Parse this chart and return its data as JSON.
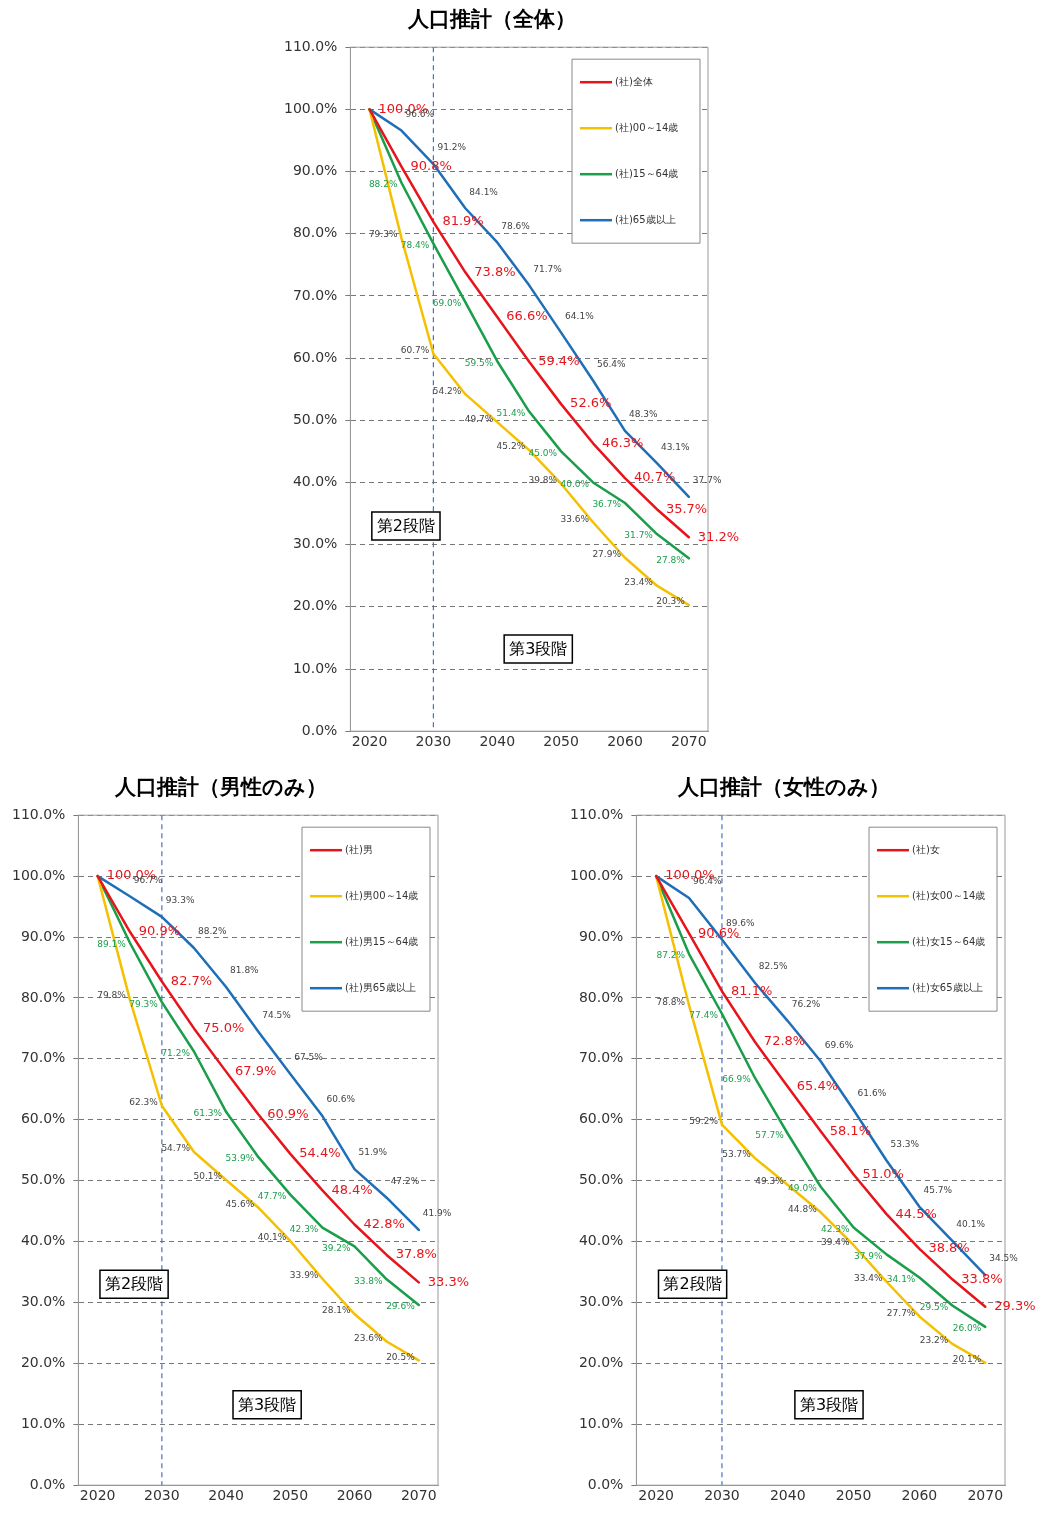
{
  "chart_data": [
    {
      "type": "line",
      "title": "人口推計（全体）",
      "x": [
        2020,
        2025,
        2030,
        2035,
        2040,
        2045,
        2050,
        2055,
        2060,
        2065,
        2070
      ],
      "xlim": [
        2017,
        2073
      ],
      "xticks": [
        2020,
        2030,
        2040,
        2050,
        2060,
        2070
      ],
      "ylim": [
        0,
        110
      ],
      "yticks": [
        {
          "value": 0,
          "label": "0.0%"
        },
        {
          "value": 10,
          "label": "10.0%"
        },
        {
          "value": 20,
          "label": "20.0%"
        },
        {
          "value": 30,
          "label": "30.0%"
        },
        {
          "value": 40,
          "label": "40.0%"
        },
        {
          "value": 50,
          "label": "50.0%"
        },
        {
          "value": 60,
          "label": "60.0%"
        },
        {
          "value": 70,
          "label": "70.0%"
        },
        {
          "value": 80,
          "label": "80.0%"
        },
        {
          "value": 90,
          "label": "90.0%"
        },
        {
          "value": 100,
          "label": "100.0%"
        },
        {
          "value": 110,
          "label": "110.0%"
        }
      ],
      "grid": "y",
      "legend": "top right",
      "marker": "none",
      "series": [
        {
          "name": "(社)全体",
          "color": "#e8141b",
          "values": [
            100.0,
            90.8,
            81.9,
            73.8,
            66.6,
            59.4,
            52.6,
            46.3,
            40.7,
            35.7,
            31.2
          ],
          "value_labels": [
            "100.0%",
            "90.8%",
            "81.9%",
            "73.8%",
            "66.6%",
            "59.4%",
            "52.6%",
            "46.3%",
            "40.7%",
            "35.7%",
            "31.2%"
          ]
        },
        {
          "name": "(社)00～14歳",
          "color": "#f5c000",
          "values": [
            100.0,
            79.3,
            60.7,
            54.2,
            49.7,
            45.2,
            39.8,
            33.6,
            27.9,
            23.4,
            20.3
          ],
          "value_labels": [
            null,
            "79.3%",
            "60.7%",
            "54.2%",
            "49.7%",
            "45.2%",
            "39.8%",
            "33.6%",
            "27.9%",
            "23.4%",
            "20.3%"
          ]
        },
        {
          "name": "(社)15～64歳",
          "color": "#1a9e4a",
          "values": [
            100.0,
            88.2,
            78.4,
            69.0,
            59.5,
            51.4,
            45.0,
            40.0,
            36.7,
            31.7,
            27.8
          ],
          "value_labels": [
            null,
            "88.2%",
            "78.4%",
            "69.0%",
            "59.5%",
            "51.4%",
            "45.0%",
            "40.0%",
            "36.7%",
            "31.7%",
            "27.8%"
          ]
        },
        {
          "name": "(社)65歳以上",
          "color": "#1f6fb8",
          "values": [
            100.0,
            96.6,
            91.2,
            84.1,
            78.6,
            71.7,
            64.1,
            56.4,
            48.3,
            43.1,
            37.7
          ],
          "value_labels": [
            null,
            "96.6%",
            "91.2%",
            "84.1%",
            "78.6%",
            "71.7%",
            "64.1%",
            "56.4%",
            "48.3%",
            "43.1%",
            "37.7%"
          ]
        }
      ],
      "ref_lines": [
        {
          "axis": "x",
          "value": 2030,
          "color": "#4472c4",
          "line_style": "dashed"
        }
      ],
      "annotations": [
        "第2段階",
        "第3段階"
      ]
    },
    {
      "type": "line",
      "title": "人口推計（男性のみ）",
      "x": [
        2020,
        2025,
        2030,
        2035,
        2040,
        2045,
        2050,
        2055,
        2060,
        2065,
        2070
      ],
      "xlim": [
        2017,
        2073
      ],
      "xticks": [
        2020,
        2030,
        2040,
        2050,
        2060,
        2070
      ],
      "ylim": [
        0,
        110
      ],
      "yticks": [
        {
          "value": 0,
          "label": "0.0%"
        },
        {
          "value": 10,
          "label": "10.0%"
        },
        {
          "value": 20,
          "label": "20.0%"
        },
        {
          "value": 30,
          "label": "30.0%"
        },
        {
          "value": 40,
          "label": "40.0%"
        },
        {
          "value": 50,
          "label": "50.0%"
        },
        {
          "value": 60,
          "label": "60.0%"
        },
        {
          "value": 70,
          "label": "70.0%"
        },
        {
          "value": 80,
          "label": "80.0%"
        },
        {
          "value": 90,
          "label": "90.0%"
        },
        {
          "value": 100,
          "label": "100.0%"
        },
        {
          "value": 110,
          "label": "110.0%"
        }
      ],
      "grid": "y",
      "legend": "top right",
      "marker": "none",
      "series": [
        {
          "name": "(社)男",
          "color": "#e8141b",
          "values": [
            100.0,
            90.9,
            82.7,
            75.0,
            67.9,
            60.9,
            54.4,
            48.4,
            42.8,
            37.8,
            33.3
          ],
          "value_labels": [
            "100.0%",
            "90.9%",
            "82.7%",
            "75.0%",
            "67.9%",
            "60.9%",
            "54.4%",
            "48.4%",
            "42.8%",
            "37.8%",
            "33.3%"
          ]
        },
        {
          "name": "(社)男00～14歳",
          "color": "#f5c000",
          "values": [
            100.0,
            79.8,
            62.3,
            54.7,
            50.1,
            45.6,
            40.1,
            33.9,
            28.1,
            23.6,
            20.5
          ],
          "value_labels": [
            null,
            "79.8%",
            "62.3%",
            "54.7%",
            "50.1%",
            "45.6%",
            "40.1%",
            "33.9%",
            "28.1%",
            "23.6%",
            "20.5%"
          ]
        },
        {
          "name": "(社)男15～64歳",
          "color": "#1a9e4a",
          "values": [
            100.0,
            89.1,
            79.3,
            71.2,
            61.3,
            53.9,
            47.7,
            42.3,
            39.2,
            33.8,
            29.6
          ],
          "value_labels": [
            null,
            "89.1%",
            "79.3%",
            "71.2%",
            "61.3%",
            "53.9%",
            "47.7%",
            "42.3%",
            "39.2%",
            "33.8%",
            "29.6%"
          ]
        },
        {
          "name": "(社)男65歳以上",
          "color": "#1f6fb8",
          "values": [
            100.0,
            96.7,
            93.3,
            88.2,
            81.8,
            74.5,
            67.5,
            60.6,
            51.9,
            47.2,
            41.9
          ],
          "value_labels": [
            null,
            "96.7%",
            "93.3%",
            "88.2%",
            "81.8%",
            "74.5%",
            "67.5%",
            "60.6%",
            "51.9%",
            "47.2%",
            "41.9%"
          ]
        }
      ],
      "ref_lines": [
        {
          "axis": "x",
          "value": 2030,
          "color": "#4472c4",
          "line_style": "dashed"
        }
      ],
      "annotations": [
        "第2段階",
        "第3段階"
      ]
    },
    {
      "type": "line",
      "title": "人口推計（女性のみ）",
      "x": [
        2020,
        2025,
        2030,
        2035,
        2040,
        2045,
        2050,
        2055,
        2060,
        2065,
        2070
      ],
      "xlim": [
        2017,
        2073
      ],
      "xticks": [
        2020,
        2030,
        2040,
        2050,
        2060,
        2070
      ],
      "ylim": [
        0,
        110
      ],
      "yticks": [
        {
          "value": 0,
          "label": "0.0%"
        },
        {
          "value": 10,
          "label": "10.0%"
        },
        {
          "value": 20,
          "label": "20.0%"
        },
        {
          "value": 30,
          "label": "30.0%"
        },
        {
          "value": 40,
          "label": "40.0%"
        },
        {
          "value": 50,
          "label": "50.0%"
        },
        {
          "value": 60,
          "label": "60.0%"
        },
        {
          "value": 70,
          "label": "70.0%"
        },
        {
          "value": 80,
          "label": "80.0%"
        },
        {
          "value": 90,
          "label": "90.0%"
        },
        {
          "value": 100,
          "label": "100.0%"
        },
        {
          "value": 110,
          "label": "110.0%"
        }
      ],
      "grid": "y",
      "legend": "top right",
      "marker": "none",
      "series": [
        {
          "name": "(社)女",
          "color": "#e8141b",
          "values": [
            100.0,
            90.6,
            81.1,
            72.8,
            65.4,
            58.1,
            51.0,
            44.5,
            38.8,
            33.8,
            29.3
          ],
          "value_labels": [
            "100.0%",
            "90.6%",
            "81.1%",
            "72.8%",
            "65.4%",
            "58.1%",
            "51.0%",
            "44.5%",
            "38.8%",
            "33.8%",
            "29.3%"
          ]
        },
        {
          "name": "(社)女00～14歳",
          "color": "#f5c000",
          "values": [
            100.0,
            78.8,
            59.2,
            53.7,
            49.3,
            44.8,
            39.4,
            33.4,
            27.7,
            23.2,
            20.1
          ],
          "value_labels": [
            null,
            "78.8%",
            "59.2%",
            "53.7%",
            "49.3%",
            "44.8%",
            "39.4%",
            "33.4%",
            "27.7%",
            "23.2%",
            "20.1%"
          ]
        },
        {
          "name": "(社)女15～64歳",
          "color": "#1a9e4a",
          "values": [
            100.0,
            87.2,
            77.4,
            66.9,
            57.7,
            49.0,
            42.3,
            37.9,
            34.1,
            29.5,
            26.0
          ],
          "value_labels": [
            null,
            "87.2%",
            "77.4%",
            "66.9%",
            "57.7%",
            "49.0%",
            "42.3%",
            "37.9%",
            "34.1%",
            "29.5%",
            "26.0%"
          ]
        },
        {
          "name": "(社)女65歳以上",
          "color": "#1f6fb8",
          "values": [
            100.0,
            96.4,
            89.6,
            82.5,
            76.2,
            69.6,
            61.6,
            53.3,
            45.7,
            40.1,
            34.5
          ],
          "value_labels": [
            null,
            "96.4%",
            "89.6%",
            "82.5%",
            "76.2%",
            "69.6%",
            "61.6%",
            "53.3%",
            "45.7%",
            "40.1%",
            "34.5%"
          ]
        }
      ],
      "ref_lines": [
        {
          "axis": "x",
          "value": 2030,
          "color": "#4472c4",
          "line_style": "dashed"
        }
      ],
      "annotations": [
        "第2段階",
        "第3段階"
      ]
    }
  ]
}
